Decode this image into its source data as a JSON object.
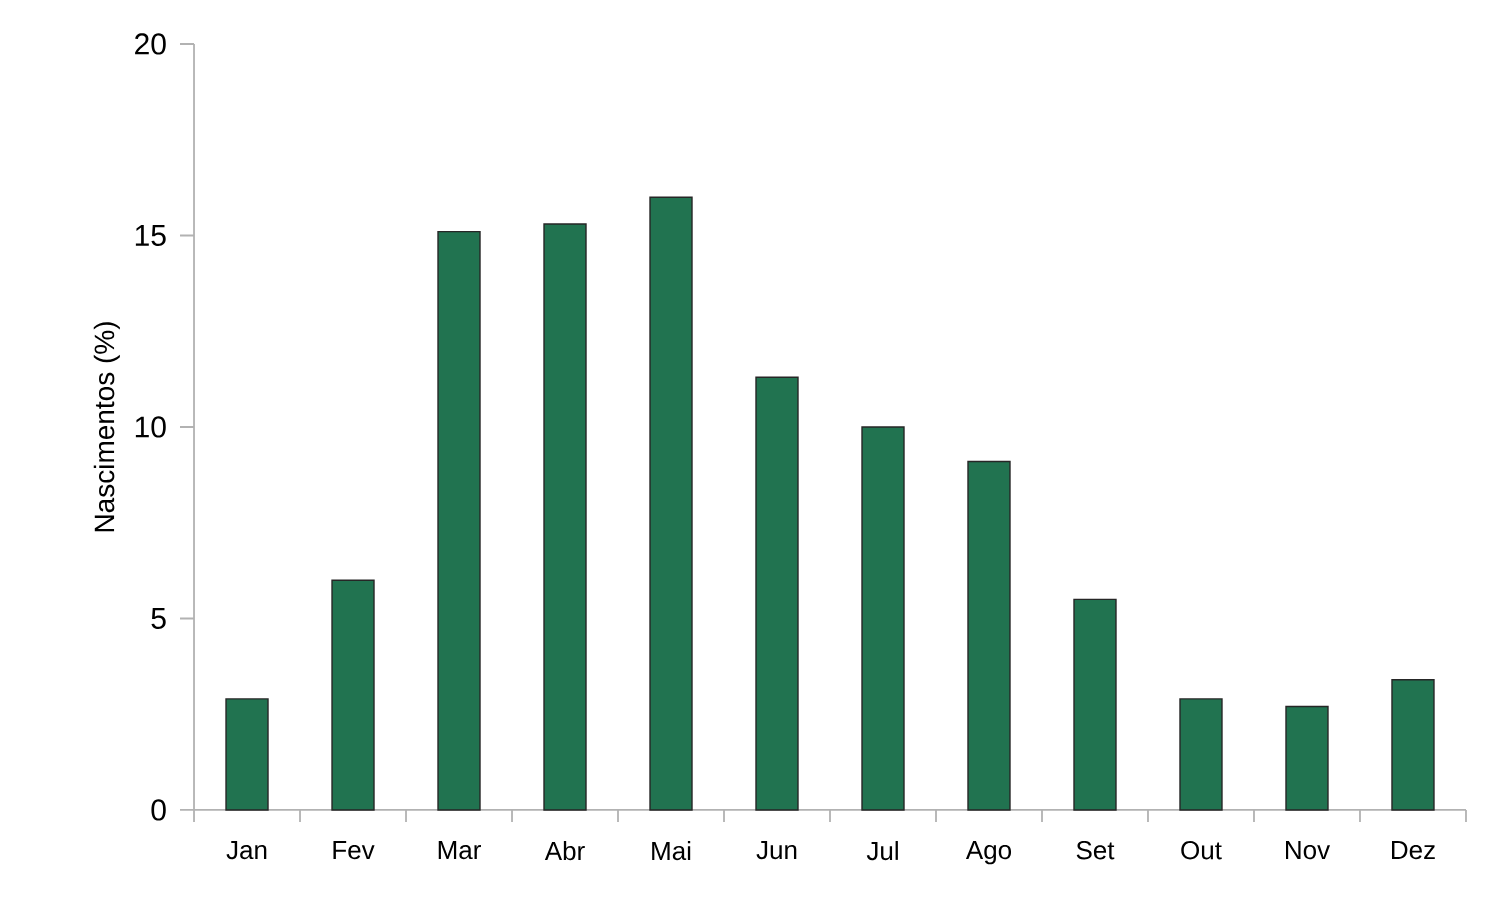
{
  "chart_data": {
    "type": "bar",
    "ylabel": "Nascimentos (%)",
    "categories": [
      "Jan",
      "Fev",
      "Mar",
      "Abr",
      "Mai",
      "Jun",
      "Jul",
      "Ago",
      "Set",
      "Out",
      "Nov",
      "Dez"
    ],
    "values": [
      2.9,
      6.0,
      15.1,
      15.3,
      16.0,
      11.3,
      10.0,
      9.1,
      5.5,
      2.9,
      2.7,
      3.4
    ],
    "color": "#217350",
    "ylim": [
      0,
      20
    ],
    "yticks": [
      0,
      5,
      10,
      15,
      20
    ]
  }
}
